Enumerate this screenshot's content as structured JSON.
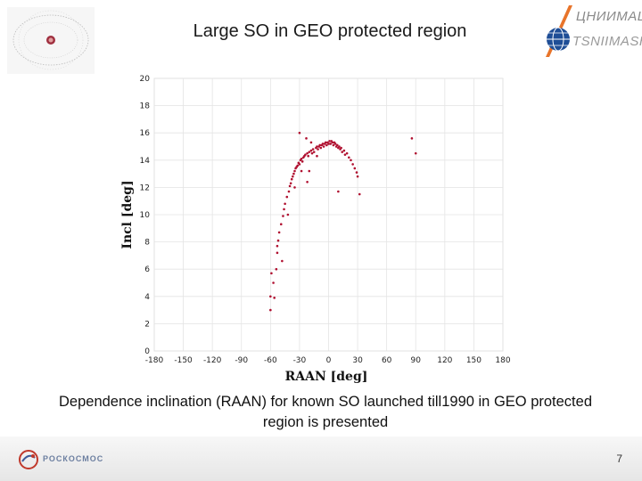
{
  "slide": {
    "title": "Large SO in GEO protected region",
    "caption": "Dependence  inclination (RAAN) for known SO launched till1990 in GEO protected region is presented",
    "page_number": "7"
  },
  "logo": {
    "ru": "ЦНИИМАШ",
    "en": "TSNIIMASH",
    "accent": "#e8742a",
    "globe": "#1f4e96"
  },
  "footer": {
    "org": "РОСКОСМОС",
    "accent": "#c0392b"
  },
  "chart_data": {
    "type": "scatter",
    "title": "",
    "xlabel": "RAAN [deg]",
    "ylabel": "Incl [deg]",
    "xlim": [
      -180,
      180
    ],
    "ylim": [
      0,
      20
    ],
    "xticks": [
      -180,
      -150,
      -120,
      -90,
      -60,
      -30,
      0,
      30,
      60,
      90,
      120,
      150,
      180
    ],
    "yticks": [
      0,
      2,
      4,
      6,
      8,
      10,
      12,
      14,
      16,
      18,
      20
    ],
    "xtick_labels": [
      "-180",
      "-150",
      "-120",
      "-90",
      "-60",
      "-30",
      "0",
      "30",
      "60",
      "90",
      "120",
      "150",
      "180"
    ],
    "ytick_labels": [
      "0",
      "2",
      "4",
      "6",
      "8",
      "10",
      "12",
      "14",
      "16",
      "18",
      "20"
    ],
    "grid": true,
    "point_color": "#b01030",
    "points": [
      [
        -60,
        3.0
      ],
      [
        -60,
        4.0
      ],
      [
        -59,
        5.7
      ],
      [
        -57,
        5.0
      ],
      [
        -56,
        3.9
      ],
      [
        -54,
        6.0
      ],
      [
        -53,
        7.2
      ],
      [
        -52,
        8.1
      ],
      [
        -51,
        8.7
      ],
      [
        -49,
        9.3
      ],
      [
        -48,
        6.6
      ],
      [
        -47,
        9.9
      ],
      [
        -46,
        10.4
      ],
      [
        -45,
        10.8
      ],
      [
        -43,
        11.3
      ],
      [
        -41,
        11.7
      ],
      [
        -40,
        12.1
      ],
      [
        -39,
        12.3
      ],
      [
        -38,
        12.6
      ],
      [
        -37,
        12.8
      ],
      [
        -36,
        13.0
      ],
      [
        -35,
        13.2
      ],
      [
        -34,
        13.4
      ],
      [
        -33,
        13.5
      ],
      [
        -32,
        13.6
      ],
      [
        -31,
        13.8
      ],
      [
        -30,
        13.7
      ],
      [
        -29,
        14.0
      ],
      [
        -28,
        14.1
      ],
      [
        -27,
        13.9
      ],
      [
        -26,
        14.2
      ],
      [
        -25,
        14.3
      ],
      [
        -24,
        14.4
      ],
      [
        -22,
        14.5
      ],
      [
        -21,
        14.3
      ],
      [
        -20,
        14.6
      ],
      [
        -18,
        14.7
      ],
      [
        -17,
        14.5
      ],
      [
        -16,
        14.8
      ],
      [
        -15,
        14.6
      ],
      [
        -13,
        14.9
      ],
      [
        -12,
        15.0
      ],
      [
        -11,
        14.8
      ],
      [
        -10,
        15.0
      ],
      [
        -9,
        15.1
      ],
      [
        -8,
        14.9
      ],
      [
        -7,
        15.1
      ],
      [
        -6,
        15.2
      ],
      [
        -5,
        15.0
      ],
      [
        -4,
        15.2
      ],
      [
        -3,
        15.3
      ],
      [
        -2,
        15.1
      ],
      [
        -1,
        15.3
      ],
      [
        0,
        15.2
      ],
      [
        1,
        15.4
      ],
      [
        2,
        15.2
      ],
      [
        3,
        15.4
      ],
      [
        4,
        15.3
      ],
      [
        5,
        15.1
      ],
      [
        6,
        15.3
      ],
      [
        7,
        15.2
      ],
      [
        8,
        15.0
      ],
      [
        9,
        15.1
      ],
      [
        10,
        14.9
      ],
      [
        11,
        15.0
      ],
      [
        12,
        14.8
      ],
      [
        13,
        14.9
      ],
      [
        14,
        14.6
      ],
      [
        16,
        14.7
      ],
      [
        17,
        14.4
      ],
      [
        19,
        14.5
      ],
      [
        21,
        14.2
      ],
      [
        23,
        14.0
      ],
      [
        25,
        13.7
      ],
      [
        27,
        13.4
      ],
      [
        29,
        13.1
      ],
      [
        30,
        12.8
      ],
      [
        32,
        11.5
      ],
      [
        -30,
        16.0
      ],
      [
        -23,
        15.6
      ],
      [
        -18,
        15.3
      ],
      [
        -12,
        14.3
      ],
      [
        -22,
        12.4
      ],
      [
        -28,
        13.2
      ],
      [
        -35,
        12.0
      ],
      [
        -42,
        10.0
      ],
      [
        -20,
        13.2
      ],
      [
        10,
        11.7
      ],
      [
        -53,
        7.7
      ],
      [
        86,
        15.6
      ],
      [
        90,
        14.5
      ]
    ]
  }
}
